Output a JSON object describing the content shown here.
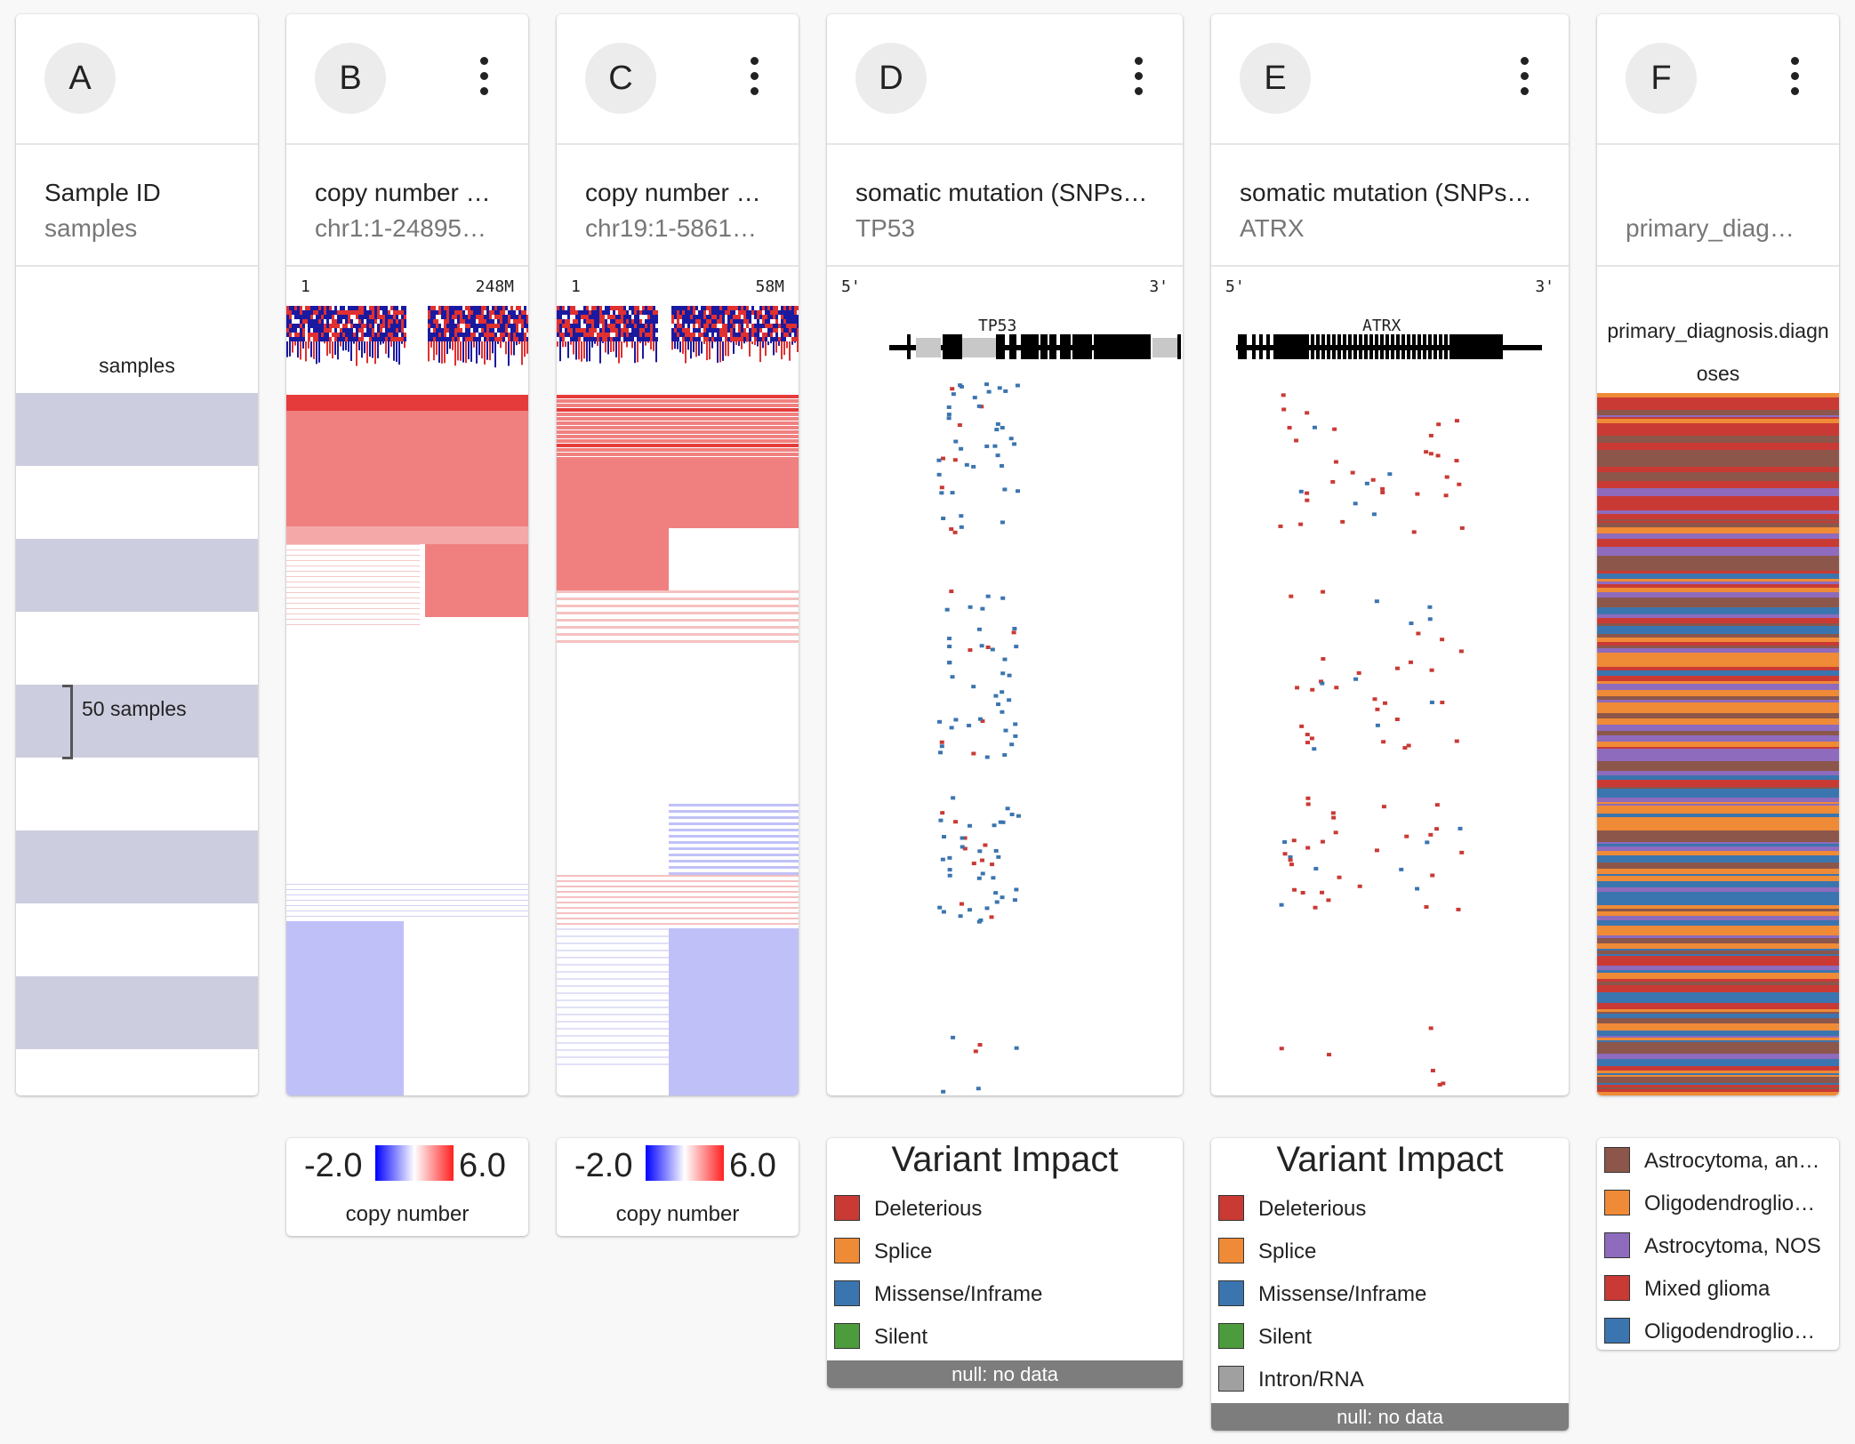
{
  "columns": [
    {
      "id": "A",
      "title": "Sample ID",
      "subtitle": "samples",
      "body_label": "samples",
      "bracket_label": "50 samples"
    },
    {
      "id": "B",
      "title": "copy number …",
      "subtitle": "chr1:1-24895…",
      "ruler_start": "1",
      "ruler_end": "248M",
      "has_menu": true
    },
    {
      "id": "C",
      "title": "copy number …",
      "subtitle": "chr19:1-5861…",
      "ruler_start": "1",
      "ruler_end": "58M",
      "has_menu": true
    },
    {
      "id": "D",
      "title": "somatic mutation (SNPs…",
      "subtitle": "TP53",
      "ruler_start": "5'",
      "ruler_end": "3'",
      "gene": "TP53",
      "has_menu": true
    },
    {
      "id": "E",
      "title": "somatic mutation (SNPs…",
      "subtitle": "ATRX",
      "ruler_start": "5'",
      "ruler_end": "3'",
      "gene": "ATRX",
      "has_menu": true
    },
    {
      "id": "F",
      "title": "",
      "subtitle": "primary_diag…",
      "field_label_line1": "primary_diagnosis.diagn",
      "field_label_line2": "oses",
      "has_menu": true
    }
  ],
  "copy_number_legend": {
    "min": "-2.0",
    "max": "6.0",
    "label": "copy number",
    "min_color": "#0000ff",
    "max_color": "#ff2020"
  },
  "variant_legend": {
    "title": "Variant Impact",
    "items": [
      {
        "label": "Deleterious",
        "color": "#c93a34"
      },
      {
        "label": "Splice",
        "color": "#ef8a36"
      },
      {
        "label": "Missense/Inframe",
        "color": "#3b75af"
      },
      {
        "label": "Silent",
        "color": "#4c9c3d"
      },
      {
        "label": "Intron/RNA",
        "color": "#a0a0a0"
      }
    ],
    "null_label": "null: no data"
  },
  "diagnosis_legend": {
    "items": [
      {
        "label": "Astrocytoma, an…",
        "color": "#8c564b"
      },
      {
        "label": "Oligodendroglio…",
        "color": "#ef8a36"
      },
      {
        "label": "Astrocytoma, NOS",
        "color": "#8e6bbd"
      },
      {
        "label": "Mixed glioma",
        "color": "#c93a34"
      },
      {
        "label": "Oligodendroglio…",
        "color": "#3b75af"
      }
    ]
  }
}
